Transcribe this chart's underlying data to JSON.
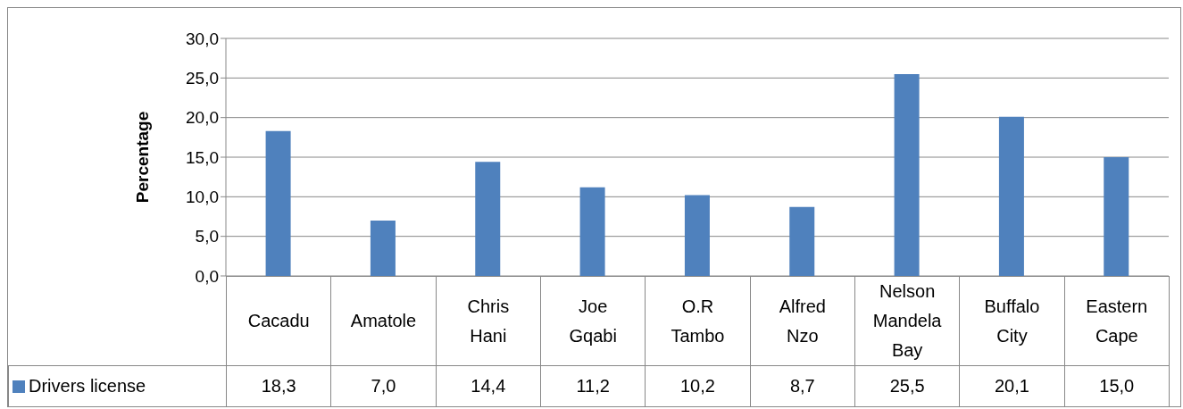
{
  "chart_data": {
    "type": "bar",
    "ylabel": "Percentage",
    "categories": [
      "Cacadu",
      "Amatole",
      "Chris Hani",
      "Joe Gqabi",
      "O.R Tambo",
      "Alfred Nzo",
      "Nelson Mandela Bay",
      "Buffalo City",
      "Eastern Cape"
    ],
    "series": [
      {
        "name": "Drivers license",
        "color": "#4f81bd",
        "values": [
          18.3,
          7.0,
          14.4,
          11.2,
          10.2,
          8.7,
          25.5,
          20.1,
          15.0
        ],
        "value_labels": [
          "18,3",
          "7,0",
          "14,4",
          "11,2",
          "10,2",
          "8,7",
          "25,5",
          "20,1",
          "15,0"
        ]
      }
    ],
    "ylim": [
      0,
      30
    ],
    "yticks": [
      {
        "value": 0,
        "label": "0,0"
      },
      {
        "value": 5,
        "label": "5,0"
      },
      {
        "value": 10,
        "label": "10,0"
      },
      {
        "value": 15,
        "label": "15,0"
      },
      {
        "value": 20,
        "label": "20,0"
      },
      {
        "value": 25,
        "label": "25,0"
      },
      {
        "value": 30,
        "label": "30,0"
      }
    ],
    "grid": "y",
    "legend": "bottom left"
  }
}
